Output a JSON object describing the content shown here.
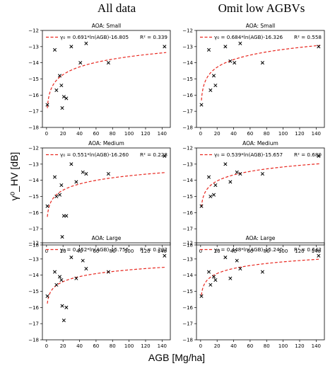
{
  "column_titles": [
    "All data",
    "Omit low AGBVs"
  ],
  "ylabel": "γ⁰_HV [dB]",
  "xlabel": "AGB [Mg/ha]",
  "colors": {
    "fit_line": "#e8271f",
    "points": "#000000",
    "frame": "#000000"
  },
  "chart_data": [
    {
      "type": "scatter",
      "title": "AOA: Small",
      "column": "All data",
      "xlim": [
        -5,
        150
      ],
      "ylim": [
        -18,
        -12
      ],
      "xticks": [
        0,
        20,
        40,
        60,
        80,
        100,
        120,
        140
      ],
      "yticks": [
        -18,
        -17,
        -16,
        -15,
        -14,
        -13,
        -12
      ],
      "points": {
        "x": [
          1,
          10,
          12,
          16,
          18,
          19,
          21,
          24,
          30,
          41,
          48,
          75,
          143
        ],
        "y": [
          -16.6,
          -13.2,
          -15.7,
          -14.8,
          -15.4,
          -16.8,
          -16.1,
          -16.2,
          -13.0,
          -14.0,
          -12.8,
          -14.0,
          -13.0
        ]
      },
      "fit": {
        "type": "log",
        "a": 0.691,
        "b": -16.805,
        "label": "γ₀ = 0.691*ln(AGB)-16.805",
        "r2_label": "R² = 0.339"
      }
    },
    {
      "type": "scatter",
      "title": "AOA: Small",
      "column": "Omit low AGBVs",
      "xlim": [
        -5,
        150
      ],
      "ylim": [
        -18,
        -12
      ],
      "xticks": [
        0,
        20,
        40,
        60,
        80,
        100,
        120,
        140
      ],
      "yticks": [
        -18,
        -17,
        -16,
        -15,
        -14,
        -13,
        -12
      ],
      "points": {
        "x": [
          1,
          10,
          12,
          16,
          18,
          30,
          36,
          41,
          48,
          75,
          143
        ],
        "y": [
          -16.6,
          -13.2,
          -15.7,
          -14.8,
          -15.4,
          -13.0,
          -13.9,
          -14.0,
          -12.8,
          -14.0,
          -13.0
        ]
      },
      "fit": {
        "type": "log",
        "a": 0.684,
        "b": -16.326,
        "label": "γ₀ = 0.684*ln(AGB)-16.326",
        "r2_label": "R² = 0.558"
      }
    },
    {
      "type": "scatter",
      "title": "AOA: Medium",
      "column": "All data",
      "xlim": [
        -5,
        150
      ],
      "ylim": [
        -18,
        -12
      ],
      "xticks": [
        0,
        20,
        40,
        60,
        80,
        100,
        120,
        140
      ],
      "yticks": [
        -18,
        -17,
        -16,
        -15,
        -14,
        -13,
        -12
      ],
      "points": {
        "x": [
          1,
          10,
          12,
          16,
          18,
          19,
          21,
          24,
          30,
          36,
          44,
          48,
          75,
          143
        ],
        "y": [
          -15.6,
          -13.8,
          -15.0,
          -14.9,
          -14.3,
          -17.5,
          -16.2,
          -16.2,
          -13.0,
          -14.1,
          -13.5,
          -13.6,
          -13.6,
          -12.5
        ]
      },
      "fit": {
        "type": "log",
        "a": 0.551,
        "b": -16.26,
        "label": "γ₀ = 0.551*ln(AGB)-16.260",
        "r2_label": "R² = 0.228"
      }
    },
    {
      "type": "scatter",
      "title": "AOA: Medium",
      "column": "Omit low AGBVs",
      "xlim": [
        -5,
        150
      ],
      "ylim": [
        -18,
        -12
      ],
      "xticks": [
        0,
        20,
        40,
        60,
        80,
        100,
        120,
        140
      ],
      "yticks": [
        -18,
        -17,
        -16,
        -15,
        -14,
        -13,
        -12
      ],
      "points": {
        "x": [
          1,
          10,
          12,
          16,
          18,
          30,
          36,
          44,
          48,
          75,
          143
        ],
        "y": [
          -15.6,
          -13.8,
          -15.0,
          -14.9,
          -14.3,
          -13.0,
          -14.1,
          -13.5,
          -13.6,
          -13.6,
          -12.5
        ]
      },
      "fit": {
        "type": "log",
        "a": 0.539,
        "b": -15.657,
        "label": "γ₀ = 0.539*ln(AGB)-15.657",
        "r2_label": "R² = 0.680"
      }
    },
    {
      "type": "scatter",
      "title": "AOA: Large",
      "column": "All data",
      "xlim": [
        -5,
        150
      ],
      "ylim": [
        -18,
        -12
      ],
      "xticks": [
        0,
        20,
        40,
        60,
        80,
        100,
        120,
        140
      ],
      "yticks": [
        -18,
        -17,
        -16,
        -15,
        -14,
        -13,
        -12
      ],
      "points": {
        "x": [
          1,
          10,
          12,
          16,
          18,
          19,
          21,
          24,
          30,
          36,
          44,
          48,
          75,
          143
        ],
        "y": [
          -15.3,
          -13.8,
          -14.6,
          -14.1,
          -14.3,
          -15.9,
          -16.8,
          -16.0,
          -12.9,
          -14.2,
          -13.1,
          -13.6,
          -13.8,
          -12.8
        ]
      },
      "fit": {
        "type": "log",
        "a": 0.452,
        "b": -15.756,
        "label": "γ₀ = 0.452*ln(AGB)-15.756",
        "r2_label": "R² = 0.202"
      }
    },
    {
      "type": "scatter",
      "title": "AOA: Large",
      "column": "Omit low AGBVs",
      "xlim": [
        -5,
        150
      ],
      "ylim": [
        -18,
        -12
      ],
      "xticks": [
        0,
        20,
        40,
        60,
        80,
        100,
        120,
        140
      ],
      "yticks": [
        -18,
        -17,
        -16,
        -15,
        -14,
        -13,
        -12
      ],
      "points": {
        "x": [
          1,
          10,
          12,
          16,
          18,
          30,
          36,
          44,
          48,
          75,
          143
        ],
        "y": [
          -15.3,
          -13.8,
          -14.6,
          -14.1,
          -14.3,
          -12.9,
          -14.2,
          -13.1,
          -13.6,
          -13.8,
          -12.8
        ]
      },
      "fit": {
        "type": "log",
        "a": 0.448,
        "b": -15.24,
        "label": "γ₀ = 0.448*ln(AGB)-15.240",
        "r2_label": "R² = 0.642"
      }
    }
  ]
}
